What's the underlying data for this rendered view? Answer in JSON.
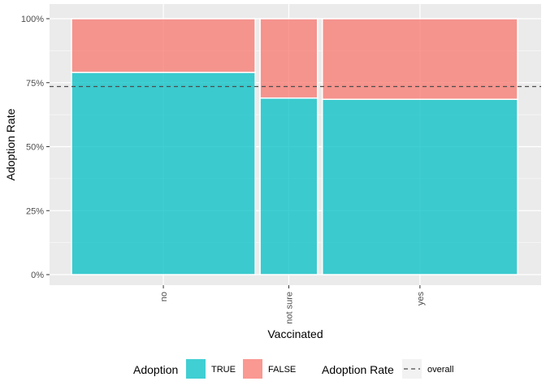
{
  "chart_data": {
    "type": "bar",
    "subtype": "mosaic-stacked-proportion",
    "xlabel": "Vaccinated",
    "ylabel": "Adoption Rate",
    "categories": [
      "no",
      "not sure",
      "yes"
    ],
    "category_share": [
      0.4,
      0.125,
      0.425
    ],
    "series": [
      {
        "name": "TRUE",
        "values": [
          0.79,
          0.69,
          0.685
        ],
        "color": "#00BFC4"
      },
      {
        "name": "FALSE",
        "values": [
          0.21,
          0.31,
          0.315
        ],
        "color": "#F8766D"
      }
    ],
    "reference_line": {
      "name": "overall",
      "value": 0.735,
      "style": "dashed"
    },
    "ylim": [
      0,
      1
    ],
    "y_ticks": [
      {
        "value": 0,
        "label": "0%"
      },
      {
        "value": 0.25,
        "label": "25%"
      },
      {
        "value": 0.5,
        "label": "50%"
      },
      {
        "value": 0.75,
        "label": "75%"
      },
      {
        "value": 1,
        "label": "100%"
      }
    ],
    "grid": true,
    "legend": {
      "position": "bottom",
      "fill_title": "Adoption",
      "fill_items": [
        "TRUE",
        "FALSE"
      ],
      "line_title": "Adoption Rate",
      "line_items": [
        "overall"
      ]
    },
    "colors": {
      "panel": "#EBEBEB",
      "gridline": "#FFFFFF",
      "reference": "#4D4D4D"
    }
  }
}
